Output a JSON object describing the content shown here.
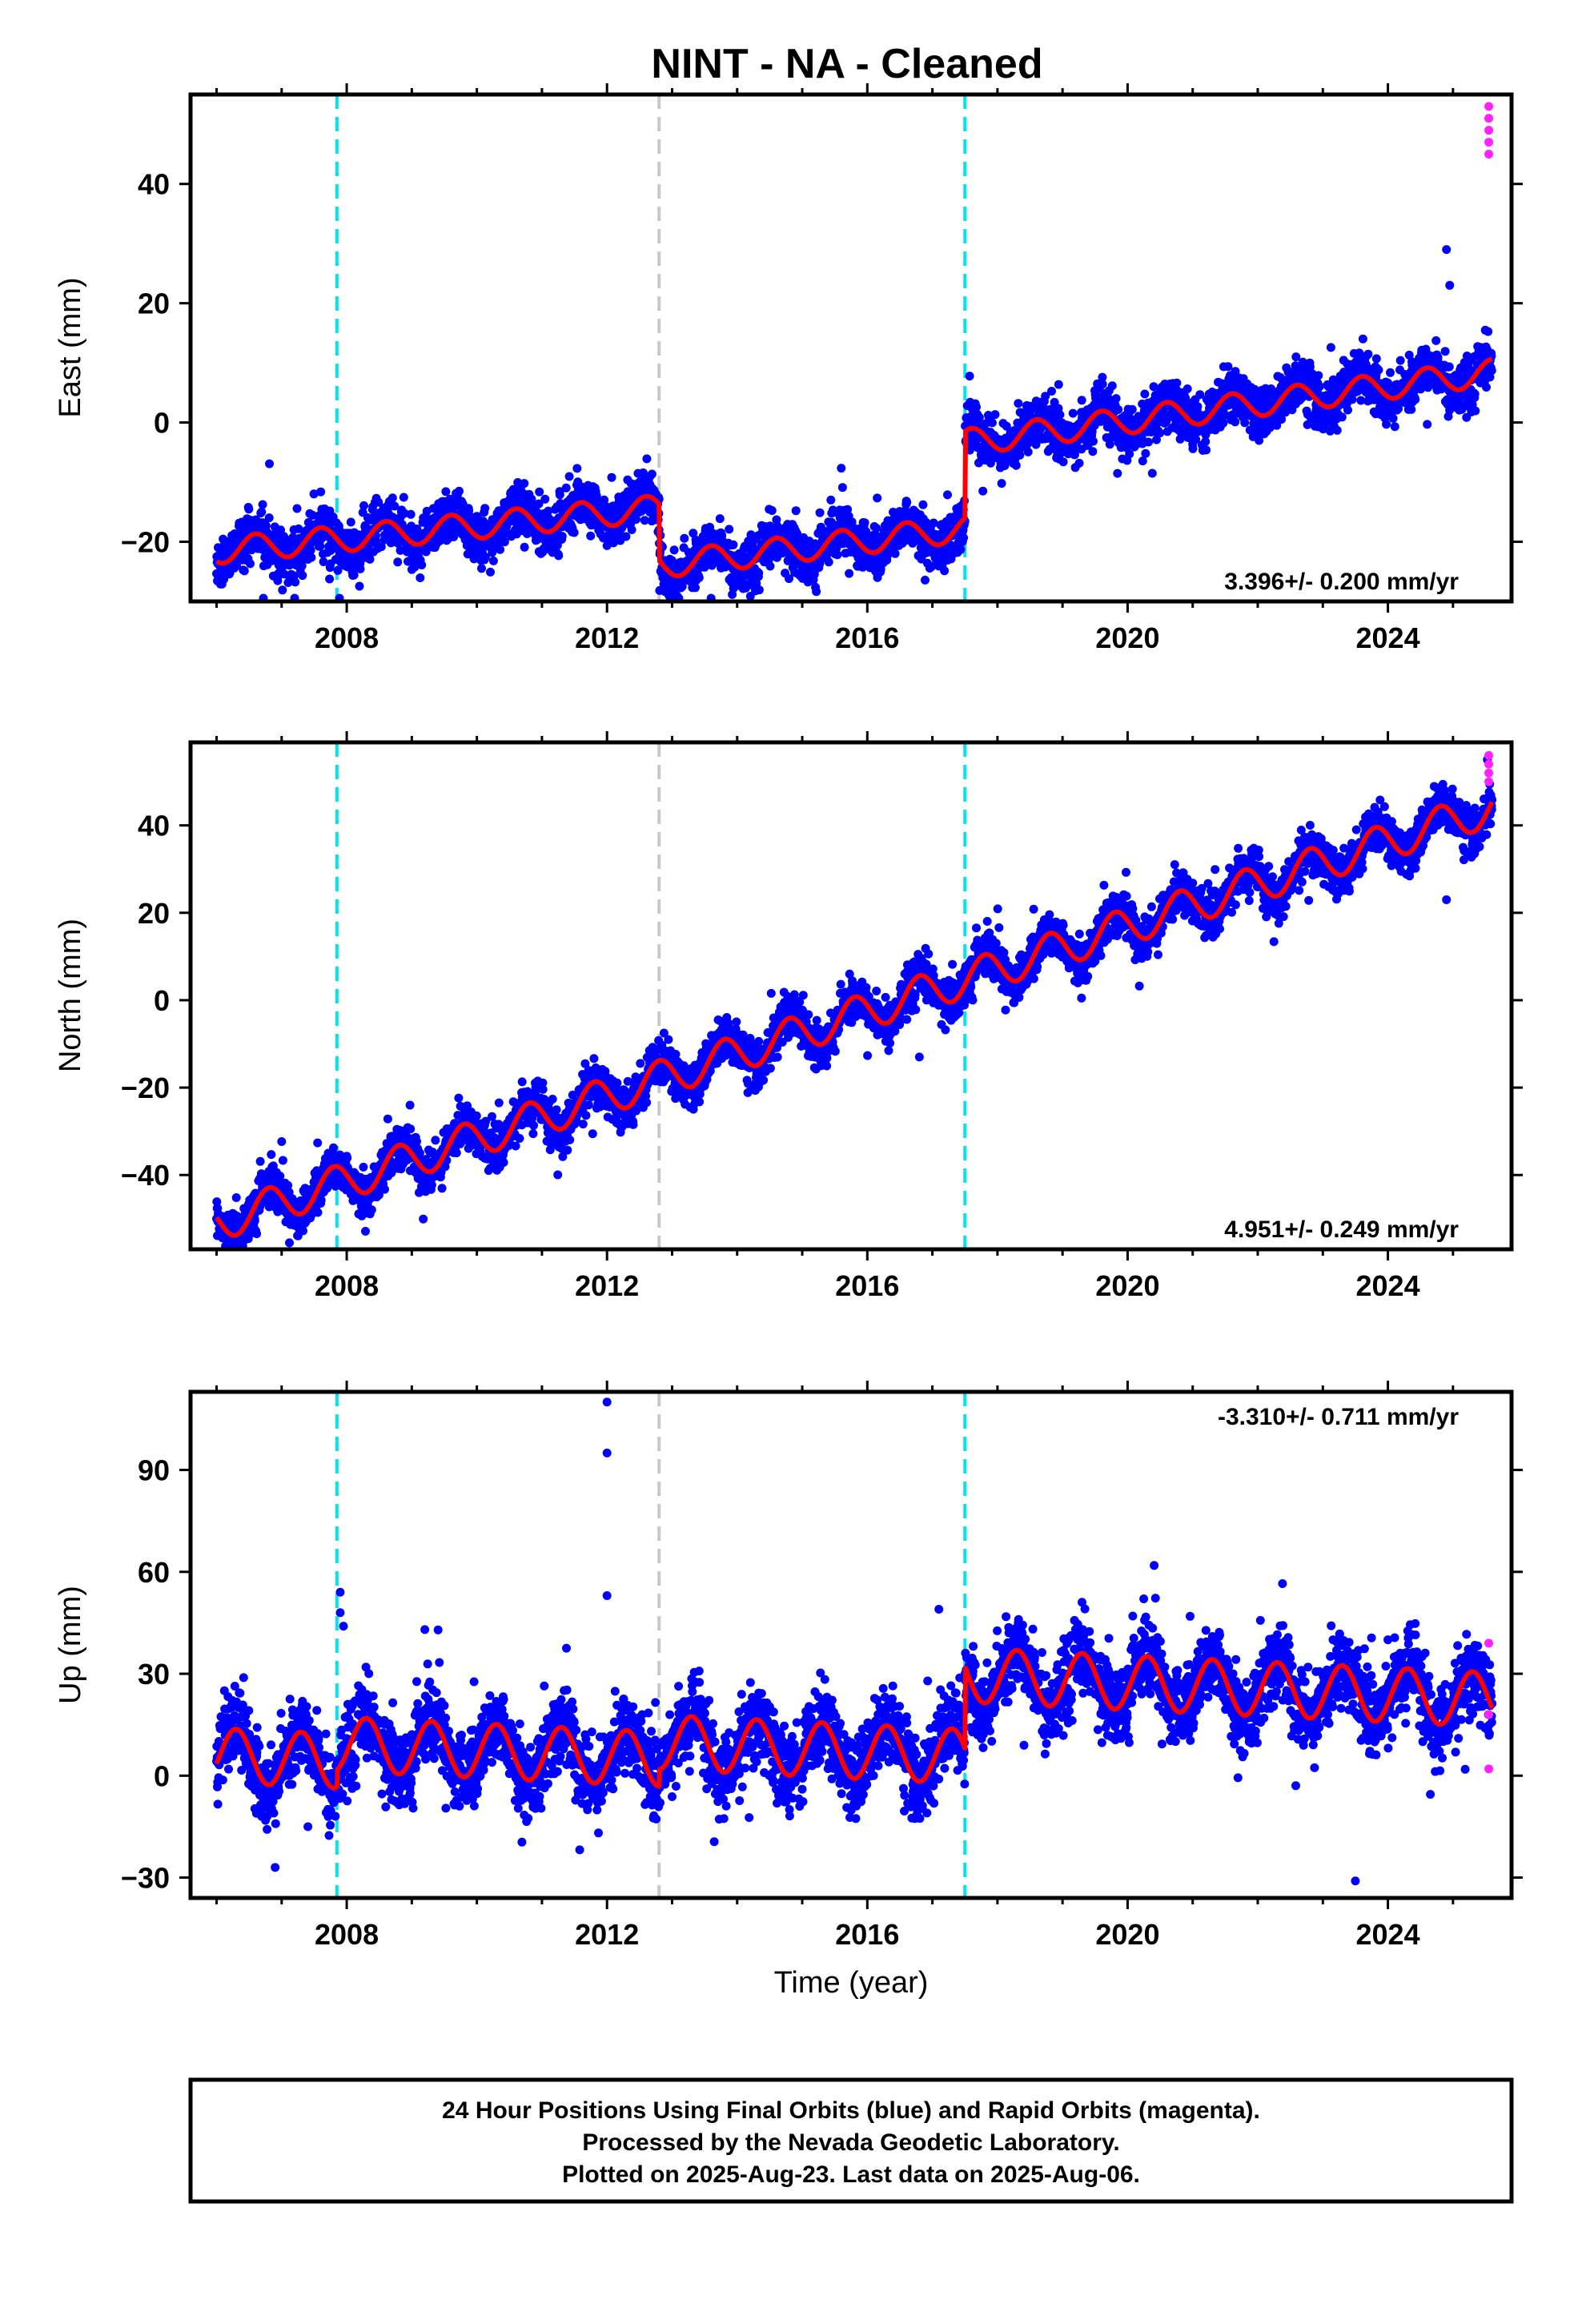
{
  "chart_data": {
    "type": "scatter",
    "title": "NINT  - NA - Cleaned",
    "xlabel": "Time (year)",
    "xlim": [
      2005.6,
      2025.9
    ],
    "xticks": [
      2008,
      2012,
      2016,
      2020,
      2024
    ],
    "colors": {
      "final_orbits": "#0000ff",
      "rapid_orbits": "#ff22ff",
      "model_fit": "#ff0000",
      "equipment_change": "#00e5ee",
      "earthquake": "#c8c8c8"
    },
    "vertical_lines": [
      {
        "x": 2007.85,
        "color": "cyan",
        "style": "dashed"
      },
      {
        "x": 2012.8,
        "color": "gray",
        "style": "dashed"
      },
      {
        "x": 2017.5,
        "color": "cyan",
        "style": "dashed"
      }
    ],
    "panels": [
      {
        "name": "east",
        "ylabel": "East (mm)",
        "ylim": [
          -30,
          55
        ],
        "yticks": [
          -20,
          0,
          20,
          40
        ],
        "rate": "3.396+/- 0.200 mm/yr",
        "rate_position": "bottom-right",
        "model": {
          "start": 2006.0,
          "end": 2025.6,
          "t0": 2006.0,
          "offset": -21.5,
          "slope": 1.05,
          "amp": 2.2,
          "phase": 0.35,
          "scatter": 2.0,
          "steps": [
            {
              "x": 2012.8,
              "dy": -9.5
            },
            {
              "x": 2017.5,
              "dy": 14.5
            }
          ],
          "trend_changes": [
            {
              "x": 2013.0,
              "dslope": 0.25
            },
            {
              "x": 2017.6,
              "dslope": 0.15
            }
          ]
        },
        "outliers": [
          {
            "x": 2012.8,
            "y": -18
          },
          {
            "x": 2013.5,
            "y": -20
          },
          {
            "x": 2024.9,
            "y": 29
          },
          {
            "x": 2024.95,
            "y": 23
          }
        ],
        "rapid_points": [
          {
            "x": 2025.55,
            "y": 53
          },
          {
            "x": 2025.55,
            "y": 51
          },
          {
            "x": 2025.55,
            "y": 49
          },
          {
            "x": 2025.55,
            "y": 47
          },
          {
            "x": 2025.55,
            "y": 45
          }
        ]
      },
      {
        "name": "north",
        "ylabel": "North (mm)",
        "ylim": [
          -57,
          59
        ],
        "yticks": [
          -40,
          -20,
          0,
          20,
          40
        ],
        "rate": "4.951+/- 0.249 mm/yr",
        "rate_position": "bottom-right",
        "model": {
          "start": 2006.0,
          "end": 2025.6,
          "t0": 2006.0,
          "offset": -51,
          "slope": 4.85,
          "amp": 4.2,
          "phase": 0.55,
          "scatter": 2.4,
          "steps": [],
          "trend_changes": []
        },
        "outliers": [
          {
            "x": 2016.8,
            "y": -13
          },
          {
            "x": 2024.9,
            "y": 23
          }
        ],
        "rapid_points": [
          {
            "x": 2025.55,
            "y": 56
          },
          {
            "x": 2025.55,
            "y": 54
          },
          {
            "x": 2025.55,
            "y": 52
          },
          {
            "x": 2025.55,
            "y": 50
          }
        ]
      },
      {
        "name": "up",
        "ylabel": "Up (mm)",
        "ylim": [
          -36,
          113
        ],
        "yticks": [
          -30,
          0,
          30,
          60,
          90
        ],
        "rate": "-3.310+/- 0.711 mm/yr",
        "rate_position": "top-right",
        "model": {
          "start": 2006.0,
          "end": 2025.6,
          "t0": 2006.0,
          "offset": 6,
          "slope": -0.9,
          "amp": 8.0,
          "phase": 0.05,
          "scatter": 5.5,
          "steps": [
            {
              "x": 2007.85,
              "dy": 5
            },
            {
              "x": 2012.8,
              "dy": 5
            },
            {
              "x": 2017.5,
              "dy": 24
            }
          ],
          "trend_changes": []
        },
        "outliers": [
          {
            "x": 2012.0,
            "y": 110
          },
          {
            "x": 2012.0,
            "y": 95
          },
          {
            "x": 2012.0,
            "y": 53
          },
          {
            "x": 2007.9,
            "y": 54
          },
          {
            "x": 2007.9,
            "y": 48
          },
          {
            "x": 2007.95,
            "y": 44
          },
          {
            "x": 2009.2,
            "y": 43
          },
          {
            "x": 2017.1,
            "y": 49
          },
          {
            "x": 2023.5,
            "y": -31
          },
          {
            "x": 2006.9,
            "y": -27
          },
          {
            "x": 2024.0,
            "y": 40
          }
        ],
        "rapid_points": [
          {
            "x": 2025.55,
            "y": 39
          },
          {
            "x": 2025.55,
            "y": 18
          },
          {
            "x": 2025.55,
            "y": 2
          }
        ]
      }
    ]
  },
  "caption": {
    "line1": "24 Hour Positions Using Final Orbits (blue) and Rapid Orbits (magenta).",
    "line2": "Processed by the Nevada Geodetic Laboratory.",
    "line3": "Plotted on 2025-Aug-23. Last data on 2025-Aug-06."
  }
}
